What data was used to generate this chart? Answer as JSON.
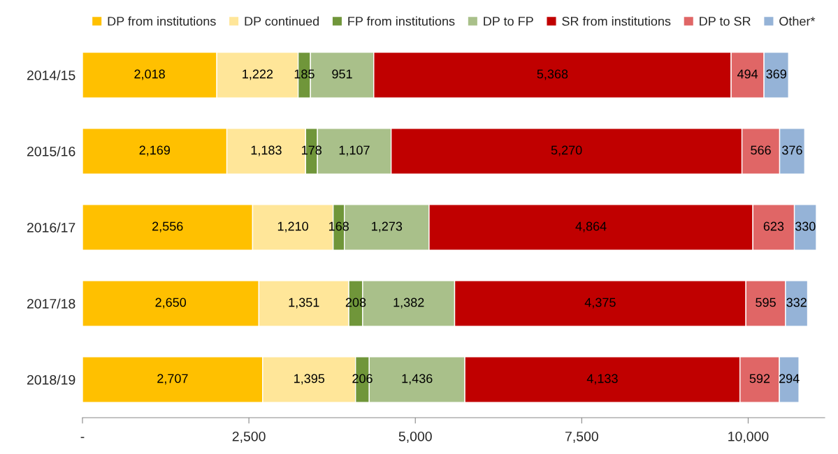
{
  "chart_data": {
    "type": "bar",
    "orientation": "horizontal",
    "stacked": true,
    "legend": "top",
    "grid": false,
    "categories": [
      "2014/15",
      "2015/16",
      "2016/17",
      "2017/18",
      "2018/19"
    ],
    "xlim": [
      0,
      11150
    ],
    "xticks": [
      {
        "value": 0,
        "label": "-"
      },
      {
        "value": 2500,
        "label": "2,500"
      },
      {
        "value": 5000,
        "label": "5,000"
      },
      {
        "value": 7500,
        "label": "7,500"
      },
      {
        "value": 10000,
        "label": "10,000"
      }
    ],
    "series": [
      {
        "name": "DP from institutions",
        "color": "#ffc000",
        "values": [
          2018,
          2169,
          2556,
          2650,
          2707
        ],
        "value_labels": [
          "2,018",
          "2,169",
          "2,556",
          "2,650",
          "2,707"
        ]
      },
      {
        "name": "DP continued",
        "color": "#ffe699",
        "values": [
          1222,
          1183,
          1210,
          1351,
          1395
        ],
        "value_labels": [
          "1,222",
          "1,183",
          "1,210",
          "1,351",
          "1,395"
        ]
      },
      {
        "name": "FP from institutions",
        "color": "#70963a",
        "values": [
          185,
          178,
          168,
          208,
          206
        ],
        "value_labels": [
          "185",
          "178",
          "168",
          "208",
          "206"
        ]
      },
      {
        "name": "DP to FP",
        "color": "#a9c08a",
        "values": [
          951,
          1107,
          1273,
          1382,
          1436
        ],
        "value_labels": [
          "951",
          "1,107",
          "1,273",
          "1,382",
          "1,436"
        ]
      },
      {
        "name": "SR from institutions",
        "color": "#c00000",
        "values": [
          5368,
          5270,
          4864,
          4375,
          4133
        ],
        "value_labels": [
          "5,368",
          "5,270",
          "4,864",
          "4,375",
          "4,133"
        ]
      },
      {
        "name": "DP to SR",
        "color": "#e06666",
        "values": [
          494,
          566,
          623,
          595,
          592
        ],
        "value_labels": [
          "494",
          "566",
          "623",
          "595",
          "592"
        ]
      },
      {
        "name": "Other*",
        "color": "#95b3d7",
        "values": [
          369,
          376,
          330,
          332,
          294
        ],
        "value_labels": [
          "369",
          "376",
          "330",
          "332",
          "294"
        ]
      }
    ]
  }
}
